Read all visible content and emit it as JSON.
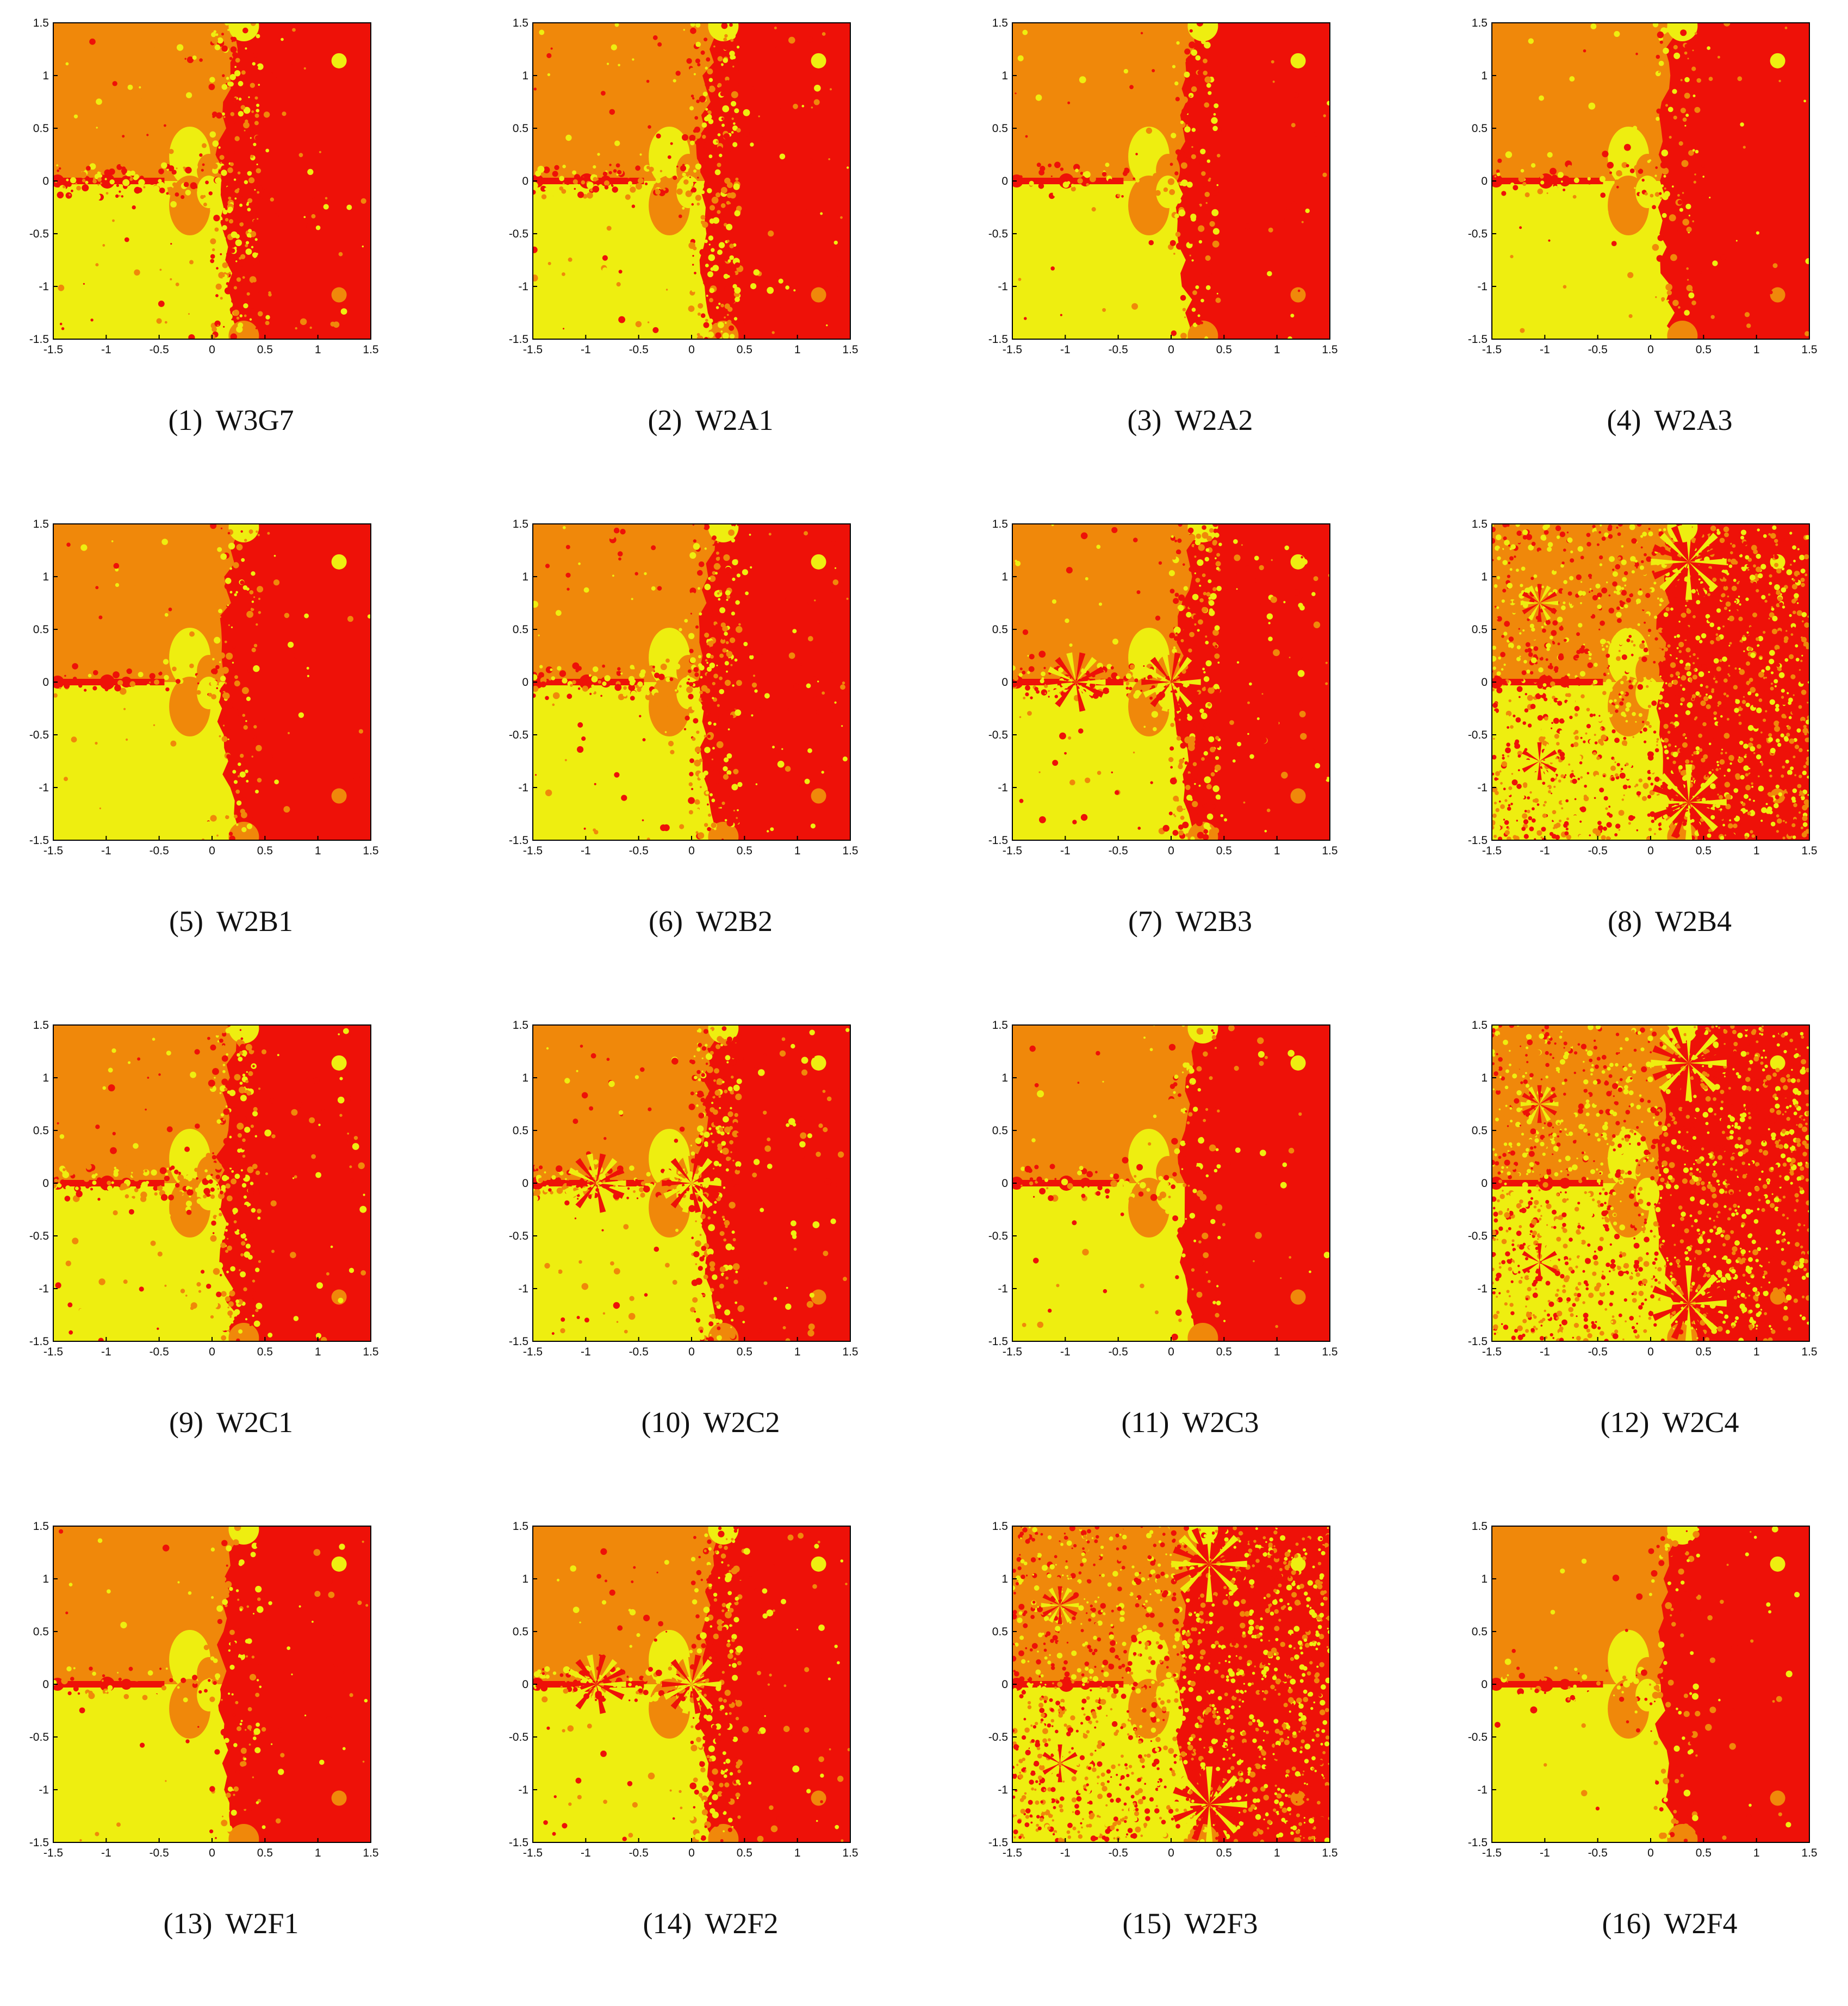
{
  "figure": {
    "colors": {
      "orange": "#f0880a",
      "yellow": "#eeee10",
      "red": "#ee1108",
      "axis": "#000000"
    },
    "axis": {
      "x_ticks": [
        "-1.5",
        "-1",
        "-0.5",
        "0",
        "0.5",
        "1",
        "1.5"
      ],
      "y_ticks": [
        "1.5",
        "1",
        "0.5",
        "0",
        "-0.5",
        "-1",
        "-1.5"
      ],
      "xlim": [
        -1.5,
        1.5
      ],
      "ylim": [
        -1.5,
        1.5
      ]
    },
    "panels": [
      {
        "number": "(1)",
        "name": "W3G7",
        "style": "mixed"
      },
      {
        "number": "(2)",
        "name": "W2A1",
        "style": "mixed"
      },
      {
        "number": "(3)",
        "name": "W2A2",
        "style": "clean"
      },
      {
        "number": "(4)",
        "name": "W2A3",
        "style": "clean"
      },
      {
        "number": "(5)",
        "name": "W2B1",
        "style": "clean"
      },
      {
        "number": "(6)",
        "name": "W2B2",
        "style": "mixed"
      },
      {
        "number": "(7)",
        "name": "W2B3",
        "style": "flower"
      },
      {
        "number": "(8)",
        "name": "W2B4",
        "style": "chaotic"
      },
      {
        "number": "(9)",
        "name": "W2C1",
        "style": "mixed"
      },
      {
        "number": "(10)",
        "name": "W2C2",
        "style": "flower"
      },
      {
        "number": "(11)",
        "name": "W2C3",
        "style": "clean"
      },
      {
        "number": "(12)",
        "name": "W2C4",
        "style": "chaotic"
      },
      {
        "number": "(13)",
        "name": "W2F1",
        "style": "clean"
      },
      {
        "number": "(14)",
        "name": "W2F2",
        "style": "flower"
      },
      {
        "number": "(15)",
        "name": "W2F3",
        "style": "chaotic"
      },
      {
        "number": "(16)",
        "name": "W2F4",
        "style": "clean"
      }
    ]
  }
}
